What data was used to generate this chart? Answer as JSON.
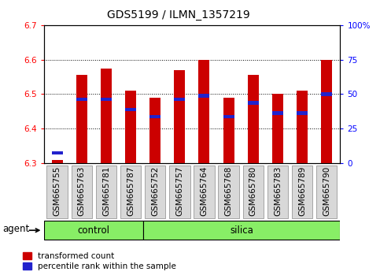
{
  "title": "GDS5199 / ILMN_1357219",
  "samples": [
    "GSM665755",
    "GSM665763",
    "GSM665781",
    "GSM665787",
    "GSM665752",
    "GSM665757",
    "GSM665764",
    "GSM665768",
    "GSM665780",
    "GSM665783",
    "GSM665789",
    "GSM665790"
  ],
  "n_control": 4,
  "n_silica": 8,
  "transformed_count": [
    6.31,
    6.555,
    6.575,
    6.51,
    6.49,
    6.57,
    6.6,
    6.49,
    6.555,
    6.5,
    6.51,
    6.6
  ],
  "percentile_rank": [
    6.33,
    6.485,
    6.485,
    6.455,
    6.435,
    6.485,
    6.495,
    6.435,
    6.475,
    6.445,
    6.445,
    6.5
  ],
  "y_min": 6.3,
  "y_max": 6.7,
  "y_ticks": [
    6.3,
    6.4,
    6.5,
    6.6,
    6.7
  ],
  "right_y_vals": [
    0,
    25,
    50,
    75,
    100
  ],
  "right_y_labels": [
    "0",
    "25",
    "50",
    "75",
    "100%"
  ],
  "bar_color": "#cc0000",
  "blue_color": "#2222cc",
  "bar_width": 0.45,
  "group_control_label": "control",
  "group_silica_label": "silica",
  "group_color": "#88ee66",
  "agent_label": "agent",
  "legend_red_label": "transformed count",
  "legend_blue_label": "percentile rank within the sample",
  "title_fontsize": 10,
  "tick_fontsize": 7.5,
  "label_fontsize": 8.5,
  "legend_fontsize": 7.5,
  "bg_color": "#d8d8d8"
}
